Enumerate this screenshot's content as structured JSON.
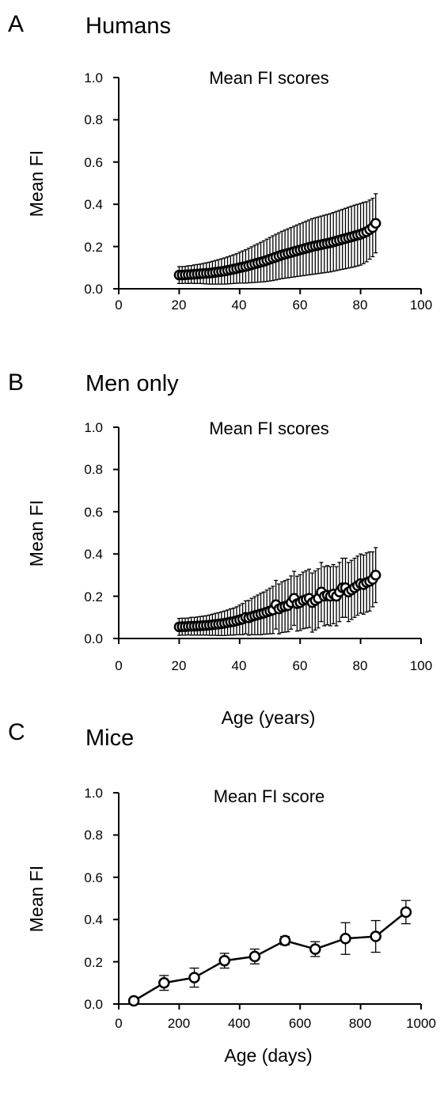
{
  "panels": [
    {
      "letter": "A",
      "heading": "Humans",
      "chart_title": "Mean FI scores",
      "ylabel": "Mean FI",
      "xlabel": "",
      "xticks": [
        "0",
        "20",
        "40",
        "60",
        "80",
        "100"
      ],
      "yticks": [
        "0.0",
        "0.2",
        "0.4",
        "0.6",
        "0.8",
        "1.0"
      ]
    },
    {
      "letter": "B",
      "heading": "Men only",
      "chart_title": "Mean FI scores",
      "ylabel": "Mean FI",
      "xlabel": "Age (years)",
      "xticks": [
        "0",
        "20",
        "40",
        "60",
        "80",
        "100"
      ],
      "yticks": [
        "0.0",
        "0.2",
        "0.4",
        "0.6",
        "0.8",
        "1.0"
      ]
    },
    {
      "letter": "C",
      "heading": "Mice",
      "chart_title": "Mean FI score",
      "ylabel": "Mean FI",
      "xlabel": "Age (days)",
      "xticks": [
        "0",
        "200",
        "400",
        "600",
        "800",
        "1000"
      ],
      "yticks": [
        "0.0",
        "0.2",
        "0.4",
        "0.6",
        "0.8",
        "1.0"
      ]
    }
  ],
  "chart_data": [
    {
      "type": "scatter",
      "title": "Mean FI scores",
      "xlabel": "",
      "ylabel": "Mean FI",
      "xlim": [
        0,
        100
      ],
      "ylim": [
        0,
        1
      ],
      "grid": false,
      "connected": false,
      "series": [
        {
          "x": [
            20,
            21,
            22,
            23,
            24,
            25,
            26,
            27,
            28,
            29,
            30,
            31,
            32,
            33,
            34,
            35,
            36,
            37,
            38,
            39,
            40,
            41,
            42,
            43,
            44,
            45,
            46,
            47,
            48,
            49,
            50,
            51,
            52,
            53,
            54,
            55,
            56,
            57,
            58,
            59,
            60,
            61,
            62,
            63,
            64,
            65,
            66,
            67,
            68,
            69,
            70,
            71,
            72,
            73,
            74,
            75,
            76,
            77,
            78,
            79,
            80,
            81,
            82,
            83,
            84,
            85
          ],
          "y": [
            0.065,
            0.065,
            0.066,
            0.067,
            0.068,
            0.069,
            0.07,
            0.071,
            0.072,
            0.073,
            0.074,
            0.076,
            0.078,
            0.08,
            0.082,
            0.084,
            0.087,
            0.09,
            0.093,
            0.096,
            0.1,
            0.103,
            0.106,
            0.11,
            0.114,
            0.118,
            0.122,
            0.126,
            0.13,
            0.135,
            0.14,
            0.145,
            0.15,
            0.155,
            0.16,
            0.164,
            0.168,
            0.172,
            0.176,
            0.18,
            0.184,
            0.188,
            0.192,
            0.196,
            0.2,
            0.203,
            0.206,
            0.209,
            0.212,
            0.215,
            0.218,
            0.222,
            0.226,
            0.23,
            0.234,
            0.238,
            0.242,
            0.246,
            0.25,
            0.254,
            0.258,
            0.264,
            0.27,
            0.28,
            0.29,
            0.31
          ],
          "error": [
            0.04,
            0.04,
            0.04,
            0.042,
            0.042,
            0.044,
            0.045,
            0.046,
            0.048,
            0.05,
            0.052,
            0.054,
            0.056,
            0.058,
            0.06,
            0.062,
            0.064,
            0.066,
            0.068,
            0.07,
            0.073,
            0.076,
            0.079,
            0.082,
            0.085,
            0.088,
            0.091,
            0.094,
            0.097,
            0.1,
            0.103,
            0.106,
            0.108,
            0.11,
            0.112,
            0.114,
            0.116,
            0.118,
            0.12,
            0.122,
            0.124,
            0.126,
            0.128,
            0.13,
            0.132,
            0.133,
            0.134,
            0.135,
            0.136,
            0.137,
            0.138,
            0.139,
            0.14,
            0.141,
            0.142,
            0.143,
            0.144,
            0.145,
            0.146,
            0.146,
            0.146,
            0.145,
            0.142,
            0.14,
            0.138,
            0.14
          ]
        }
      ]
    },
    {
      "type": "scatter",
      "title": "Mean FI scores",
      "xlabel": "Age (years)",
      "ylabel": "Mean FI",
      "xlim": [
        0,
        100
      ],
      "ylim": [
        0,
        1
      ],
      "grid": false,
      "connected": false,
      "series": [
        {
          "x": [
            20,
            21,
            22,
            23,
            24,
            25,
            26,
            27,
            28,
            29,
            30,
            31,
            32,
            33,
            34,
            35,
            36,
            37,
            38,
            39,
            40,
            41,
            42,
            43,
            44,
            45,
            46,
            47,
            48,
            49,
            50,
            51,
            52,
            53,
            54,
            55,
            56,
            57,
            58,
            59,
            60,
            61,
            62,
            63,
            64,
            65,
            66,
            67,
            68,
            69,
            70,
            71,
            72,
            73,
            74,
            75,
            76,
            77,
            78,
            79,
            80,
            81,
            82,
            83,
            84,
            85
          ],
          "y": [
            0.055,
            0.056,
            0.056,
            0.057,
            0.058,
            0.058,
            0.059,
            0.06,
            0.061,
            0.062,
            0.063,
            0.065,
            0.067,
            0.068,
            0.07,
            0.072,
            0.075,
            0.078,
            0.08,
            0.084,
            0.088,
            0.092,
            0.1,
            0.098,
            0.104,
            0.108,
            0.112,
            0.116,
            0.12,
            0.125,
            0.13,
            0.135,
            0.16,
            0.14,
            0.148,
            0.152,
            0.156,
            0.17,
            0.19,
            0.165,
            0.17,
            0.18,
            0.185,
            0.19,
            0.17,
            0.18,
            0.19,
            0.22,
            0.2,
            0.205,
            0.2,
            0.21,
            0.2,
            0.22,
            0.24,
            0.24,
            0.22,
            0.23,
            0.24,
            0.25,
            0.26,
            0.255,
            0.265,
            0.27,
            0.28,
            0.3
          ],
          "error": [
            0.04,
            0.04,
            0.04,
            0.04,
            0.042,
            0.042,
            0.043,
            0.044,
            0.045,
            0.046,
            0.048,
            0.05,
            0.052,
            0.054,
            0.056,
            0.058,
            0.06,
            0.062,
            0.064,
            0.066,
            0.07,
            0.074,
            0.078,
            0.082,
            0.086,
            0.09,
            0.094,
            0.098,
            0.1,
            0.104,
            0.108,
            0.112,
            0.115,
            0.118,
            0.12,
            0.122,
            0.124,
            0.126,
            0.128,
            0.13,
            0.132,
            0.134,
            0.136,
            0.138,
            0.14,
            0.14,
            0.14,
            0.14,
            0.14,
            0.14,
            0.14,
            0.14,
            0.14,
            0.14,
            0.14,
            0.14,
            0.14,
            0.14,
            0.14,
            0.14,
            0.14,
            0.14,
            0.14,
            0.14,
            0.13,
            0.13
          ]
        }
      ]
    },
    {
      "type": "line",
      "title": "Mean FI score",
      "xlabel": "Age (days)",
      "ylabel": "Mean FI",
      "xlim": [
        0,
        1000
      ],
      "ylim": [
        0,
        1
      ],
      "grid": false,
      "connected": true,
      "series": [
        {
          "x": [
            50,
            150,
            250,
            350,
            450,
            550,
            650,
            750,
            850,
            950
          ],
          "y": [
            0.015,
            0.1,
            0.125,
            0.205,
            0.225,
            0.3,
            0.26,
            0.31,
            0.32,
            0.435
          ],
          "error": [
            0.01,
            0.035,
            0.045,
            0.035,
            0.035,
            0.02,
            0.035,
            0.075,
            0.075,
            0.055
          ]
        }
      ]
    }
  ]
}
